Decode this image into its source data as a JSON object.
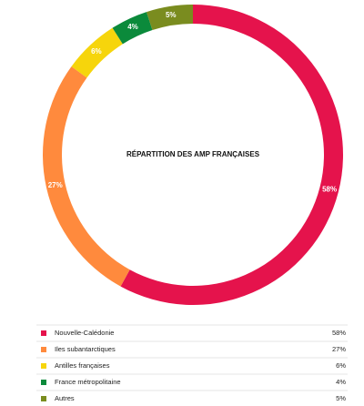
{
  "chart_data": {
    "type": "donut",
    "title": "RÉPARTITION DES AMP FRANÇAISES",
    "categories": [
      "Nouvelle-Calédonie",
      "Iles subantarctiques",
      "Antilles françaises",
      "France métropolitaine",
      "Autres"
    ],
    "values": [
      58,
      27,
      6,
      4,
      5
    ],
    "value_labels": [
      "58%",
      "27%",
      "6%",
      "4%",
      "5%"
    ],
    "colors": [
      "#e5134c",
      "#ff8a3d",
      "#f6d50c",
      "#0b8a3b",
      "#7a8c1f"
    ],
    "legend": "bottom"
  }
}
